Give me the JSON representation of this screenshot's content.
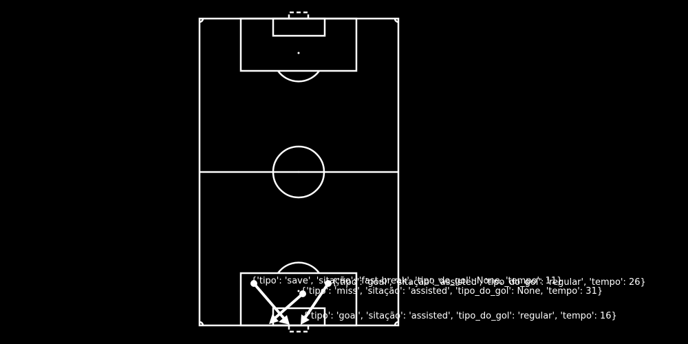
{
  "shots": [
    {
      "tipo": "save",
      "situacao": "fast-break",
      "tipo_do_gol": "None",
      "tempo": 11,
      "label": "{'tipo': 'save', 'sitação': 'fast-break', 'tipo_do_gol': None, 'tempo': 11}"
    },
    {
      "tipo": "goal",
      "situacao": "assisted",
      "tipo_do_gol": "regular",
      "tempo": 26,
      "label": "{'tipo': 'goal', 'sitação': 'assisted', 'tipo_do_gol': 'regular', 'tempo': 26}"
    },
    {
      "tipo": "miss",
      "situacao": "assisted",
      "tipo_do_gol": "None",
      "tempo": 31,
      "label": "{'tipo': 'miss', 'sitação': 'assisted', 'tipo_do_gol': None, 'tempo': 31}"
    },
    {
      "tipo": "goal",
      "situacao": "assisted",
      "tipo_do_gol": "regular",
      "tempo": 16,
      "label": "{'tipo': 'goal', 'sitação': 'assisted', 'tipo_do_gol': 'regular', 'tempo': 16}"
    }
  ],
  "colors": {
    "background": "#000000",
    "lines": "#ffffff"
  }
}
